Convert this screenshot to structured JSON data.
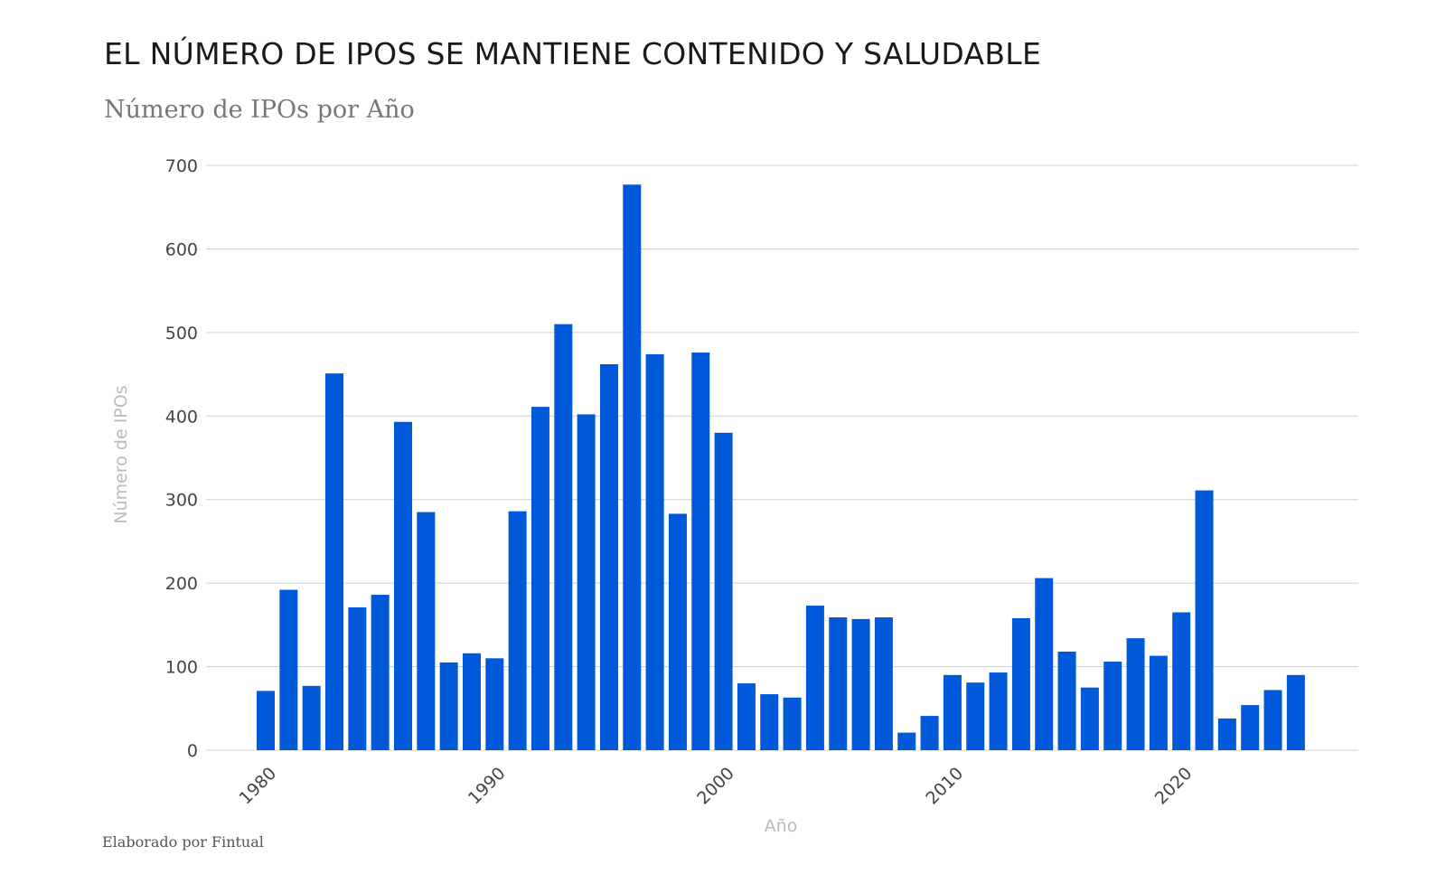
{
  "title": "EL NÚMERO DE IPOS SE MANTIENE CONTENIDO Y SALUDABLE",
  "subtitle": "Número de IPOs por Año",
  "footer": "Elaborado por Fintual",
  "colors": {
    "bar": "#0059d9",
    "grid": "#d0d0d0"
  },
  "chart_data": {
    "type": "bar",
    "title": "Número de IPOs por Año",
    "xlabel": "Año",
    "ylabel": "Número de IPOs",
    "ylim": [
      0,
      700
    ],
    "yticks": [
      0,
      100,
      200,
      300,
      400,
      500,
      600,
      700
    ],
    "xticks": [
      1980,
      1990,
      2000,
      2010,
      2020
    ],
    "grid": true,
    "categories": [
      1980,
      1981,
      1982,
      1983,
      1984,
      1985,
      1986,
      1987,
      1988,
      1989,
      1990,
      1991,
      1992,
      1993,
      1994,
      1995,
      1996,
      1997,
      1998,
      1999,
      2000,
      2001,
      2002,
      2003,
      2004,
      2005,
      2006,
      2007,
      2008,
      2009,
      2010,
      2011,
      2012,
      2013,
      2014,
      2015,
      2016,
      2017,
      2018,
      2019,
      2020,
      2021,
      2022,
      2023,
      2024,
      2025
    ],
    "values": [
      71,
      192,
      77,
      451,
      171,
      186,
      393,
      285,
      105,
      116,
      110,
      286,
      411,
      510,
      402,
      462,
      677,
      474,
      283,
      476,
      380,
      80,
      67,
      63,
      173,
      159,
      157,
      159,
      21,
      41,
      90,
      81,
      93,
      158,
      206,
      118,
      75,
      106,
      134,
      113,
      165,
      311,
      38,
      54,
      72,
      90
    ]
  }
}
